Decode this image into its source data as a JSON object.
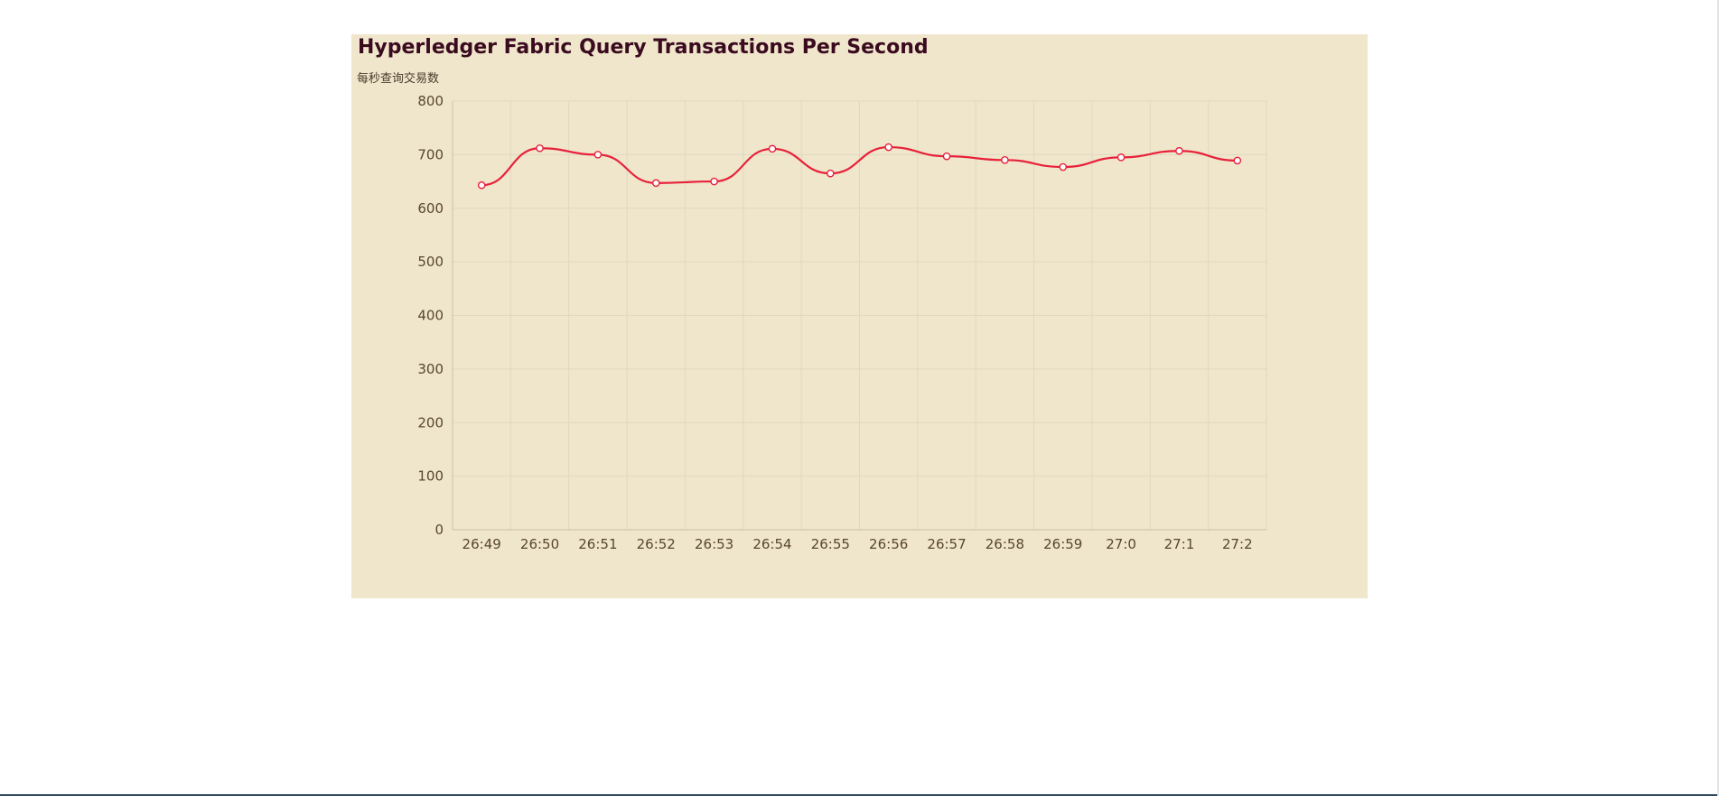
{
  "chart_data": {
    "type": "line",
    "title": "Hyperledger Fabric Query Transactions Per Second",
    "subtitle": "每秒查询交易数",
    "categories": [
      "26:49",
      "26:50",
      "26:51",
      "26:52",
      "26:53",
      "26:54",
      "26:55",
      "26:56",
      "26:57",
      "26:58",
      "26:59",
      "27:0",
      "27:1",
      "27:2"
    ],
    "series": [
      {
        "values": [
          643,
          712,
          700,
          647,
          650,
          711,
          665,
          714,
          697,
          690,
          677,
          695,
          707,
          689
        ],
        "color": "#e8213a"
      }
    ],
    "ylim": [
      0,
      800
    ],
    "yticks": [
      0,
      100,
      200,
      300,
      400,
      500,
      600,
      700,
      800
    ],
    "xlabel": "",
    "ylabel": "",
    "grid": true,
    "smooth": true,
    "markers": "hollow-circle",
    "colors": {
      "background": "#efe6cc",
      "grid": "#e0d8c0",
      "axis": "#c9c0a8",
      "title": "#3a0a1e",
      "ticks": "#5a4630"
    }
  }
}
